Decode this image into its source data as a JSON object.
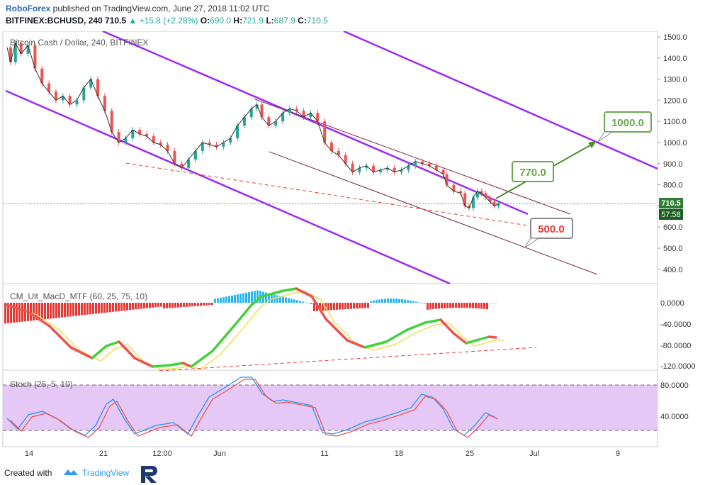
{
  "header": {
    "author": "RoboForex",
    "published": " published on TradingView.com, June 27, 2018 11:02 UTC",
    "symbol": "BITFINEX:BCHUSD, 240",
    "last": "710.5",
    "change": "▲ +15.8 (+2.28%)",
    "o_label": "O:",
    "o": "690.0",
    "h_label": "H:",
    "h": "721.9",
    "l_label": "L:",
    "l": "687.9",
    "c_label": "C:",
    "c": "710.5"
  },
  "footer": {
    "created_with": "Created with",
    "tradingview": "TradingView"
  },
  "colors": {
    "channel": "#9c27ff",
    "thin_channel": "#7b1f3a",
    "bull": "#26a69a",
    "bear": "#ef5350",
    "target": "#6aa84f",
    "support": "#e53935",
    "stoch_fill": "#e6c8f7"
  },
  "chart_data": [
    {
      "type": "line",
      "title": "Bitcoin Cash / Dollar, 240, BITFINEX",
      "x_ticks": [
        "14",
        "21",
        "12:00",
        "Jun",
        "11",
        "18",
        "25",
        "Jul",
        "9"
      ],
      "y_ticks": [
        "1500.0",
        "1400.0",
        "1300.0",
        "1200.0",
        "1100.0",
        "1000.0",
        "900.0",
        "800.0",
        "700.0",
        "600.0",
        "500.0",
        "400.0"
      ],
      "ylim": [
        350,
        1520
      ],
      "price_path": [
        [
          0,
          1450
        ],
        [
          0.5,
          1380
        ],
        [
          1.2,
          1470
        ],
        [
          2,
          1420
        ],
        [
          3,
          1460
        ],
        [
          4,
          1350
        ],
        [
          5,
          1280
        ],
        [
          6,
          1240
        ],
        [
          7,
          1200
        ],
        [
          8,
          1220
        ],
        [
          9,
          1180
        ],
        [
          10,
          1200
        ],
        [
          11,
          1260
        ],
        [
          12,
          1300
        ],
        [
          13,
          1220
        ],
        [
          14,
          1150
        ],
        [
          15,
          1050
        ],
        [
          16,
          1000
        ],
        [
          17,
          1020
        ],
        [
          18,
          1060
        ],
        [
          19,
          1040
        ],
        [
          20,
          1030
        ],
        [
          21,
          1000
        ],
        [
          22,
          990
        ],
        [
          23,
          960
        ],
        [
          24,
          900
        ],
        [
          25,
          880
        ],
        [
          26,
          920
        ],
        [
          27,
          960
        ],
        [
          28,
          1000
        ],
        [
          29,
          990
        ],
        [
          30,
          980
        ],
        [
          31,
          1000
        ],
        [
          32,
          1020
        ],
        [
          33,
          1080
        ],
        [
          34,
          1120
        ],
        [
          35,
          1160
        ],
        [
          35.8,
          1180
        ],
        [
          36.5,
          1120
        ],
        [
          37.5,
          1080
        ],
        [
          38.5,
          1100
        ],
        [
          39.5,
          1140
        ],
        [
          40.5,
          1160
        ],
        [
          41.5,
          1150
        ],
        [
          42.5,
          1120
        ],
        [
          43.5,
          1140
        ],
        [
          44.5,
          1100
        ],
        [
          45.5,
          1000
        ],
        [
          46.5,
          960
        ],
        [
          47.5,
          940
        ],
        [
          48.5,
          900
        ],
        [
          49.5,
          860
        ],
        [
          50.5,
          880
        ],
        [
          51.5,
          890
        ],
        [
          52.5,
          860
        ],
        [
          53.5,
          870
        ],
        [
          54.5,
          880
        ],
        [
          55.5,
          860
        ],
        [
          56.5,
          870
        ],
        [
          57.5,
          890
        ],
        [
          58.5,
          910
        ],
        [
          59.5,
          900
        ],
        [
          60.5,
          890
        ],
        [
          61.5,
          870
        ],
        [
          62.5,
          850
        ],
        [
          63,
          800
        ],
        [
          64,
          770
        ],
        [
          65,
          760
        ],
        [
          65.6,
          700
        ],
        [
          66.2,
          690
        ],
        [
          66.8,
          740
        ],
        [
          67.4,
          770
        ],
        [
          68,
          760
        ],
        [
          68.6,
          740
        ],
        [
          69.2,
          720
        ],
        [
          69.8,
          700
        ],
        [
          70.4,
          710
        ]
      ],
      "current_price_label": "710.5",
      "countdown": "57:58",
      "targets": [
        "1000.0",
        "770.0",
        "500.0"
      ]
    },
    {
      "type": "line",
      "title": "CM_Ult_MacD_MTF (60, 25, 75, 10)",
      "y_ticks": [
        "0.0000",
        "-40.0000",
        "-80.0000",
        "-120.0000"
      ],
      "ylim": [
        -130,
        30
      ]
    },
    {
      "type": "line",
      "title": "Stoch (25, 5, 10)",
      "y_ticks": [
        "80.0000",
        "40.0000"
      ],
      "ylim": [
        0,
        100
      ],
      "band": [
        20,
        80
      ]
    }
  ]
}
